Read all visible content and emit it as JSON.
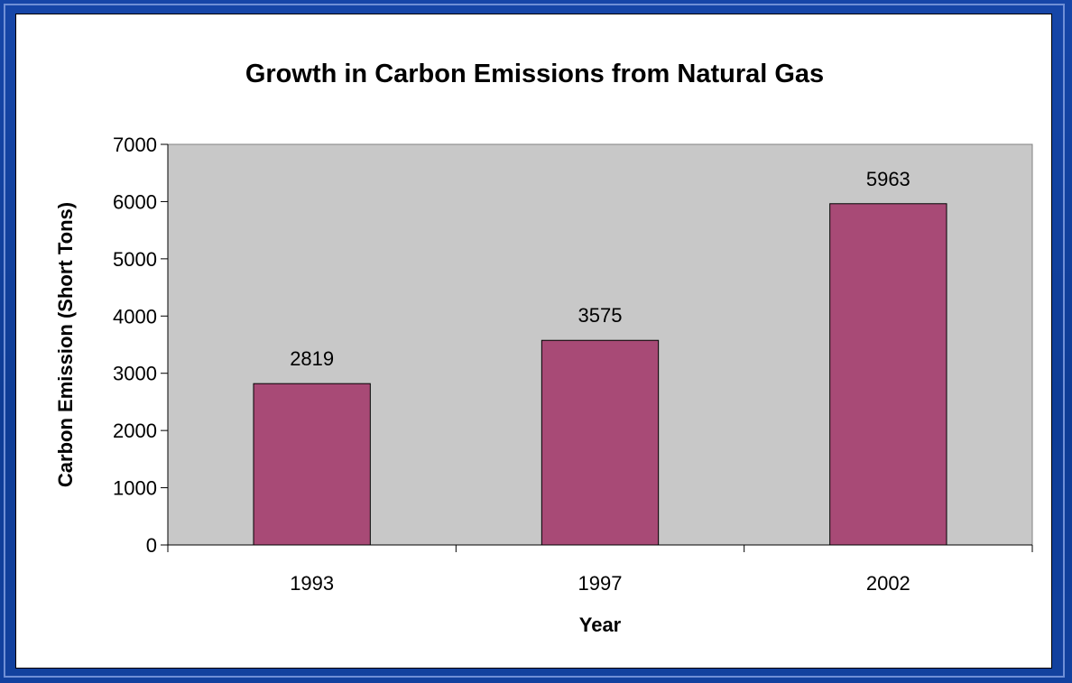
{
  "chart_data": {
    "type": "bar",
    "title": "Growth in Carbon Emissions from Natural Gas",
    "xlabel": "Year",
    "ylabel": "Carbon Emission (Short Tons)",
    "categories": [
      "1993",
      "1997",
      "2002"
    ],
    "values": [
      2819,
      3575,
      5963
    ],
    "ylim": [
      0,
      7000
    ],
    "yticks": [
      0,
      1000,
      2000,
      3000,
      4000,
      5000,
      6000,
      7000
    ],
    "data_labels": [
      "2819",
      "3575",
      "5963"
    ],
    "grid": false,
    "legend": "none",
    "colors": {
      "bar": "#a84a76",
      "plot_background": "#c8c8c8",
      "frame": "#0f3a8f"
    }
  }
}
